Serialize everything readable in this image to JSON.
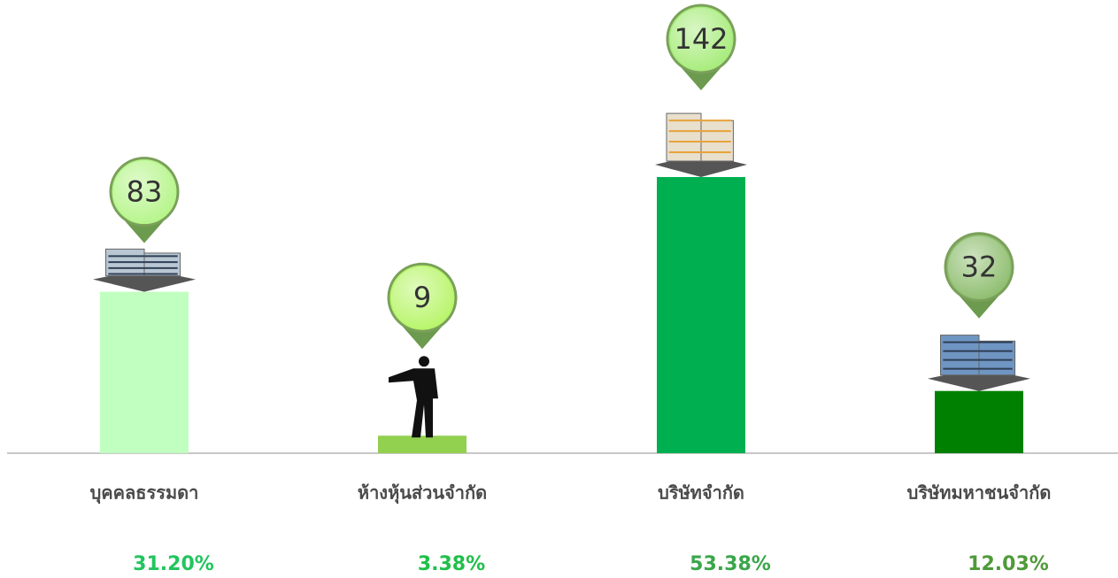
{
  "chart_data": {
    "type": "bar",
    "categories": [
      "บุคคลธรรมดา",
      "ห้างหุ้นส่วนจำกัด",
      "บริษัทจำกัด",
      "บริษัทมหาชนจำกัด"
    ],
    "values": [
      83,
      9,
      142,
      32
    ],
    "colors": [
      "#c0ffc0",
      "#92d050",
      "#00b050",
      "#008000"
    ],
    "pin_colors": [
      "#b6f58a",
      "#b8f56a",
      "#a8ec7c",
      "#8fbe70"
    ],
    "shares": [
      {
        "value": 31.2,
        "label": "31.20%"
      },
      {
        "value": 3.38,
        "label": "3.38%"
      },
      {
        "value": 53.38,
        "label": "53.38%"
      },
      {
        "value": 12.03,
        "label": "12.03%"
      }
    ],
    "share_colors": [
      "#22c55e",
      "#1fbf4a",
      "#3aa64a",
      "#4f9a3a"
    ]
  }
}
